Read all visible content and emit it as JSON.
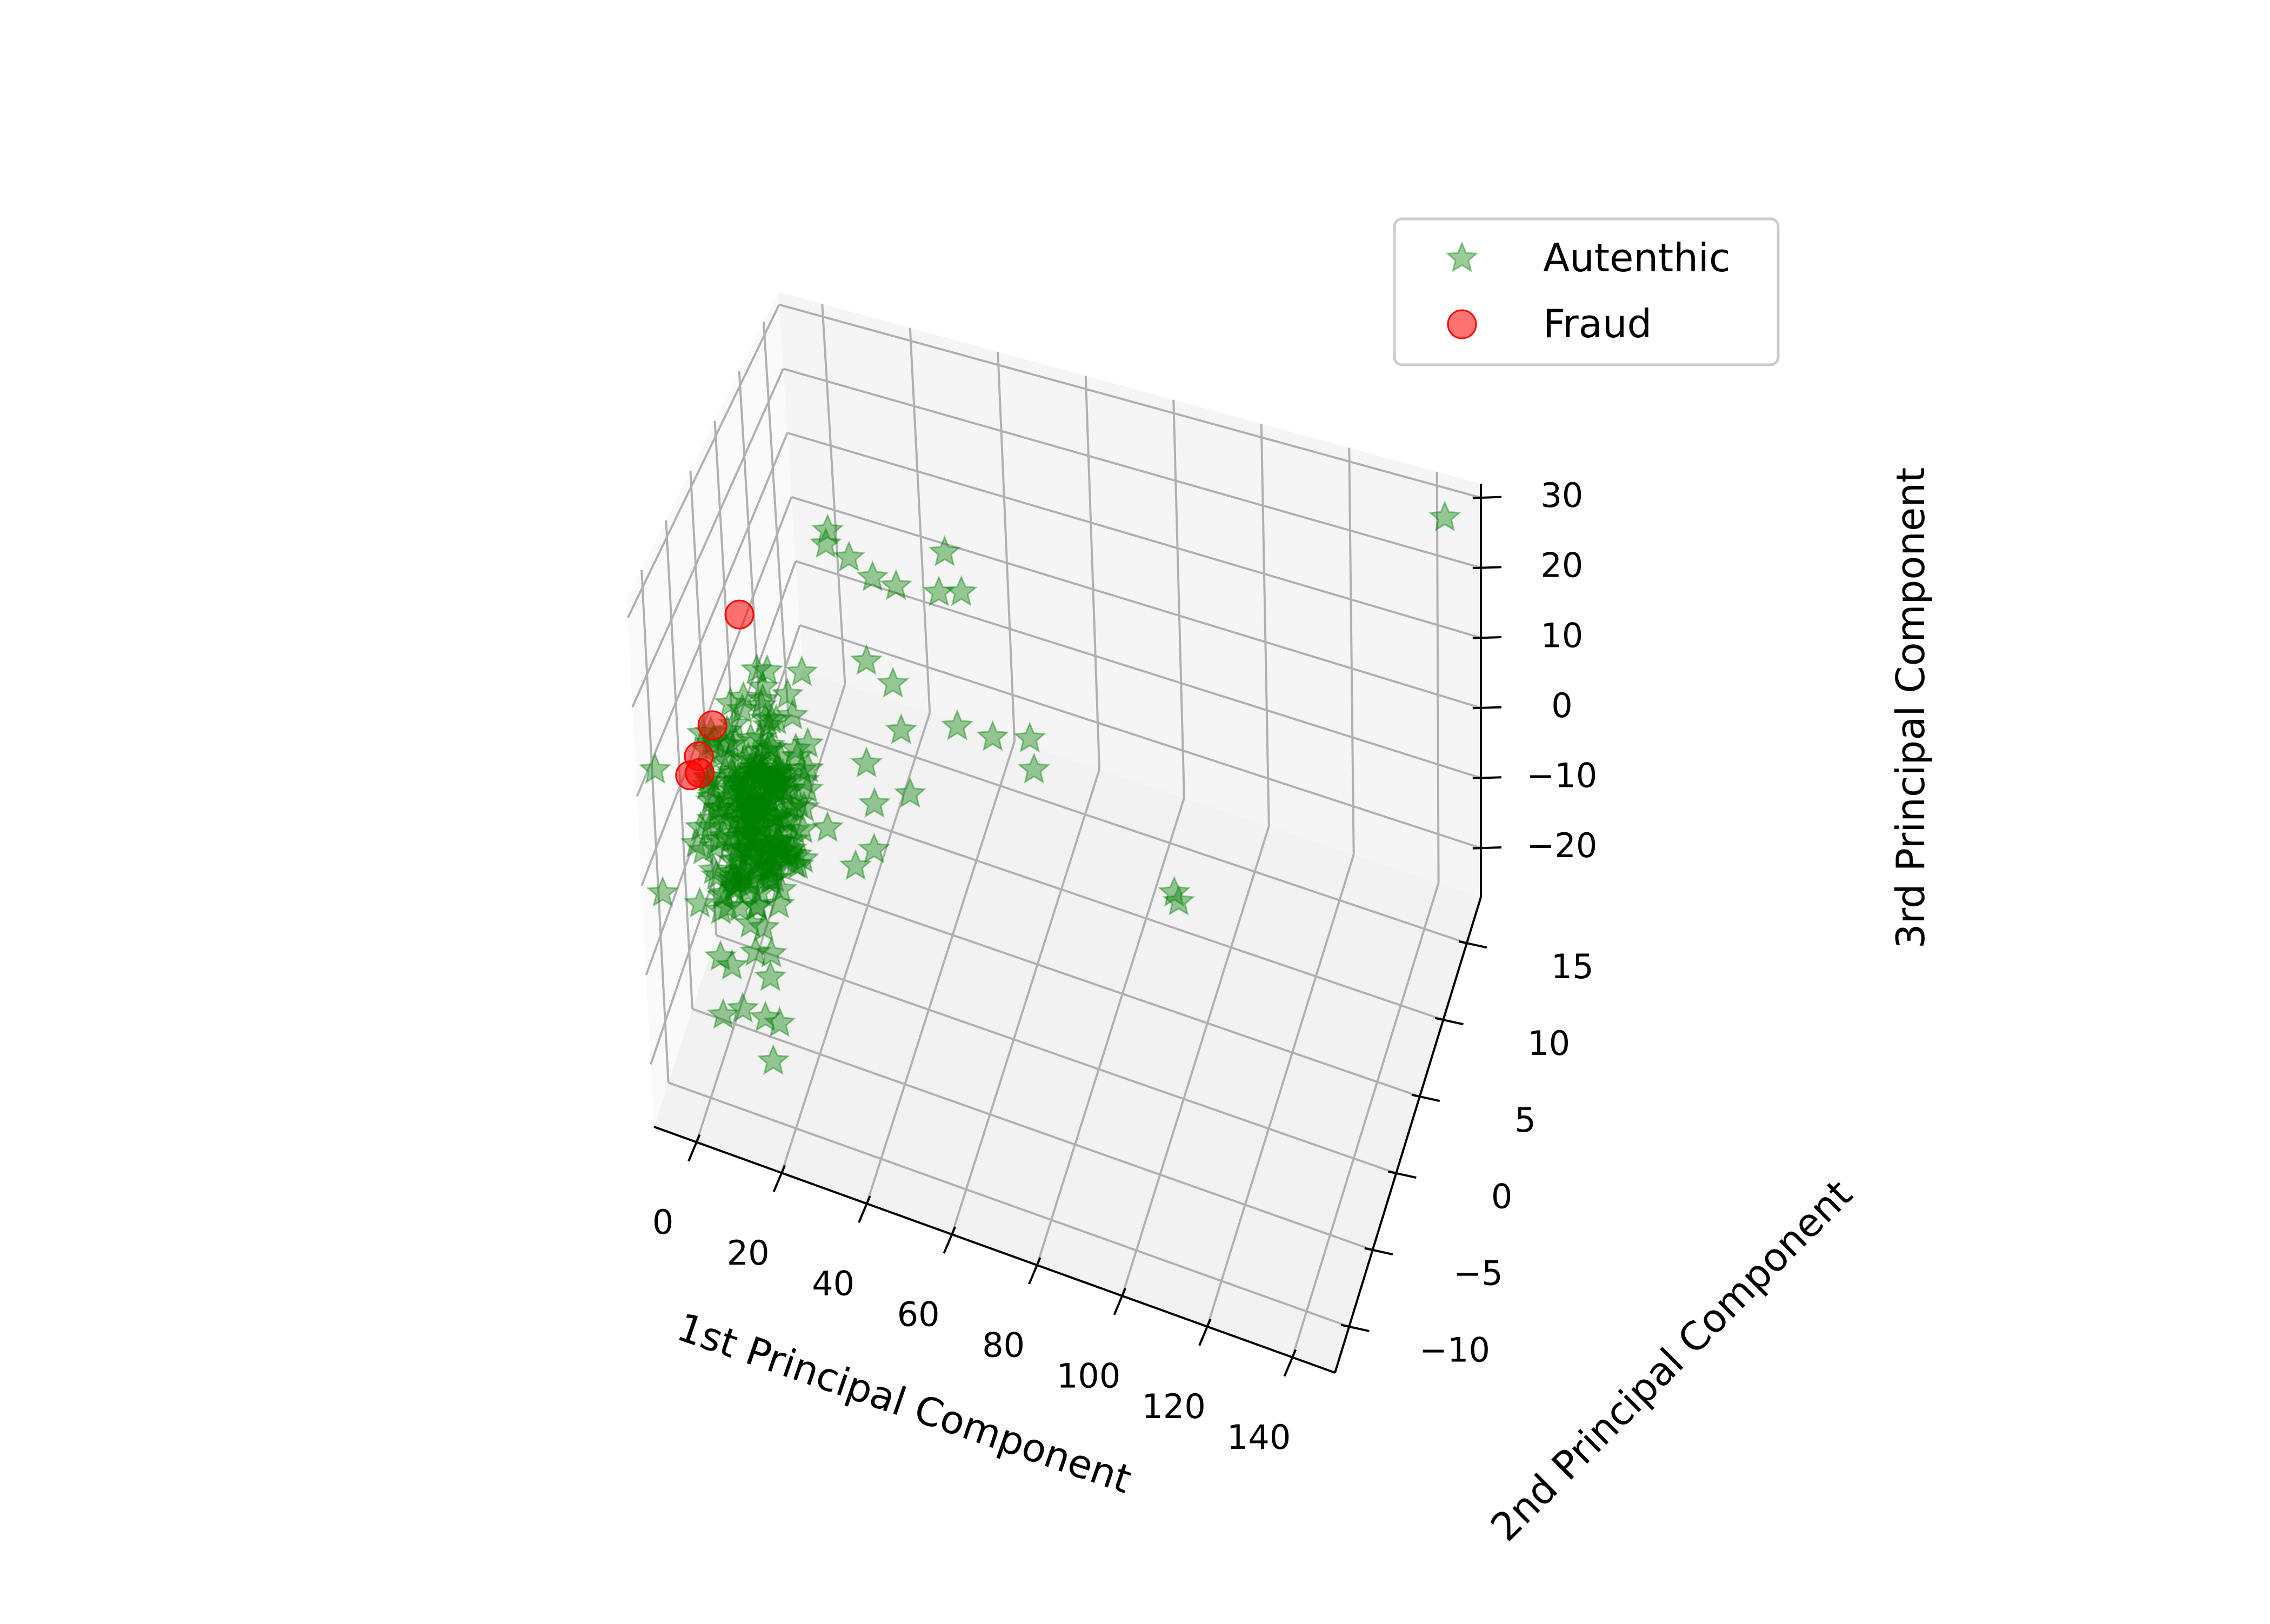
{
  "chart_data": {
    "type": "scatter",
    "projection": "3d",
    "xlabel": "1st Principal Component",
    "ylabel": "2nd Principal Component",
    "zlabel": "3rd Principal Component",
    "x_ticks": [
      "0",
      "20",
      "40",
      "60",
      "80",
      "100",
      "120",
      "140"
    ],
    "y_ticks": [
      "−10",
      "−5",
      "0",
      "5",
      "10",
      "15"
    ],
    "z_ticks": [
      "−20",
      "−10",
      "0",
      "10",
      "20",
      "30"
    ],
    "xlim": [
      -10,
      150
    ],
    "ylim": [
      -13,
      18
    ],
    "zlim": [
      -27,
      32
    ],
    "grid": true,
    "legend_position": "top-right",
    "colors": {
      "autenthic": "#008000",
      "fraud": "#ff0000"
    },
    "series": [
      {
        "name": "Autenthic",
        "marker": "star",
        "color": "#008000",
        "cluster": {
          "center": [
            5,
            -3,
            -4
          ],
          "spread": [
            9,
            2.5,
            5.5
          ],
          "count": 240
        },
        "points": [
          [
            2,
            15,
            3
          ],
          [
            4,
            13,
            5
          ],
          [
            12,
            15,
            -2
          ],
          [
            8,
            14,
            2
          ],
          [
            20,
            13,
            2
          ],
          [
            28,
            16,
            3
          ],
          [
            30,
            13,
            3
          ],
          [
            34,
            14,
            2
          ],
          [
            40,
            -2,
            3
          ],
          [
            38,
            9,
            -7
          ],
          [
            45,
            10,
            -9
          ],
          [
            50,
            13,
            -14
          ],
          [
            52,
            12,
            -16
          ],
          [
            24,
            4,
            -11
          ],
          [
            26,
            2,
            -13
          ],
          [
            20,
            6,
            -10
          ],
          [
            24,
            0,
            -12
          ],
          [
            8,
            -5,
            -14
          ],
          [
            0,
            -5,
            -20
          ],
          [
            6,
            -8,
            -19
          ],
          [
            10,
            -7,
            -21
          ],
          [
            12,
            -6,
            -23
          ],
          [
            14,
            -9,
            -22
          ],
          [
            16,
            10,
            -4
          ],
          [
            22,
            10,
            -6
          ],
          [
            26,
            8,
            -8
          ],
          [
            88,
            9,
            -20
          ],
          [
            89,
            9,
            -21
          ],
          [
            145,
            15,
            31
          ],
          [
            -9,
            -10,
            -5
          ]
        ]
      },
      {
        "name": "Fraud",
        "marker": "circle",
        "color": "#ff0000",
        "points": [
          [
            -3,
            2,
            12
          ],
          [
            -3,
            -4,
            7
          ],
          [
            -4,
            -6,
            6
          ],
          [
            -5,
            -7,
            5
          ],
          [
            -4,
            -6,
            4
          ]
        ]
      }
    ]
  }
}
